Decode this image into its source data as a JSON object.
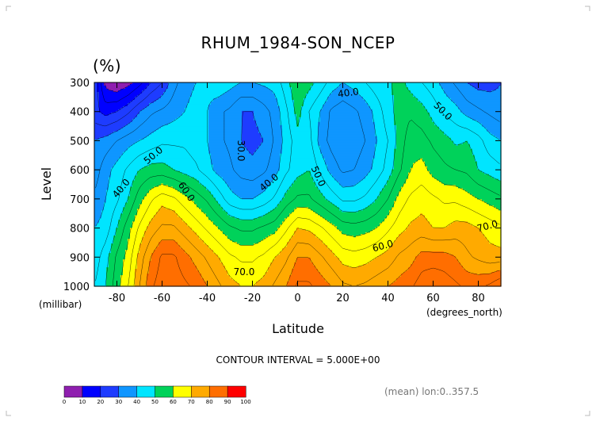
{
  "chart_data": {
    "type": "heatmap",
    "title": "RHUM_1984-SON_NCEP",
    "units_label": "(%)",
    "xlabel": "Latitude",
    "ylabel": "Level",
    "x_unit_label": "(degrees_north)",
    "y_unit_label": "(millibar)",
    "xlim": [
      -90,
      90
    ],
    "ylim": [
      1000,
      300
    ],
    "x_ticks": [
      -80,
      -60,
      -40,
      -20,
      0,
      20,
      40,
      60,
      80
    ],
    "y_ticks": [
      300,
      400,
      500,
      600,
      700,
      800,
      900,
      1000
    ],
    "x": [
      -90,
      -85,
      -80,
      -75,
      -70,
      -65,
      -60,
      -55,
      -50,
      -45,
      -40,
      -35,
      -30,
      -25,
      -20,
      -15,
      -10,
      -5,
      0,
      5,
      10,
      15,
      20,
      25,
      30,
      35,
      40,
      45,
      50,
      55,
      60,
      65,
      70,
      75,
      80,
      85,
      90
    ],
    "y": [
      300,
      400,
      500,
      600,
      700,
      800,
      900,
      1000
    ],
    "z": [
      [
        25,
        8,
        5,
        8,
        13,
        20,
        25,
        33,
        38,
        40,
        42,
        44,
        42,
        40,
        40,
        41,
        42,
        48,
        55,
        52,
        48,
        43,
        40,
        42,
        45,
        48,
        49,
        52,
        48,
        45,
        42,
        38,
        34,
        30,
        28,
        28,
        30
      ],
      [
        22,
        18,
        20,
        24,
        30,
        34,
        36,
        38,
        40,
        42,
        40,
        36,
        34,
        30,
        30,
        33,
        37,
        44,
        52,
        45,
        40,
        34,
        32,
        34,
        37,
        42,
        48,
        52,
        54,
        52,
        48,
        44,
        42,
        38,
        36,
        34,
        32
      ],
      [
        30,
        32,
        35,
        38,
        40,
        42,
        44,
        44,
        44,
        42,
        40,
        36,
        34,
        30,
        28,
        30,
        36,
        42,
        48,
        47,
        38,
        33,
        30,
        32,
        35,
        40,
        45,
        52,
        58,
        57,
        54,
        52,
        49,
        50,
        47,
        42,
        40
      ],
      [
        32,
        38,
        42,
        46,
        50,
        52,
        52,
        50,
        48,
        46,
        42,
        38,
        36,
        33,
        32,
        34,
        38,
        44,
        48,
        50,
        44,
        38,
        34,
        35,
        38,
        42,
        47,
        54,
        60,
        62,
        58,
        56,
        55,
        54,
        50,
        48,
        46
      ],
      [
        36,
        40,
        44,
        50,
        58,
        64,
        68,
        66,
        62,
        58,
        54,
        48,
        42,
        40,
        40,
        42,
        46,
        52,
        56,
        56,
        52,
        48,
        44,
        44,
        46,
        50,
        55,
        62,
        66,
        68,
        66,
        64,
        64,
        62,
        60,
        58,
        56
      ],
      [
        40,
        42,
        50,
        58,
        66,
        72,
        76,
        76,
        72,
        68,
        64,
        60,
        56,
        54,
        54,
        56,
        58,
        64,
        70,
        69,
        66,
        62,
        58,
        57,
        58,
        60,
        64,
        68,
        71,
        72,
        70,
        70,
        72,
        72,
        70,
        68,
        66
      ],
      [
        42,
        48,
        56,
        62,
        72,
        80,
        86,
        86,
        82,
        78,
        74,
        70,
        66,
        64,
        64,
        66,
        70,
        74,
        80,
        80,
        76,
        72,
        68,
        67,
        68,
        70,
        72,
        76,
        78,
        82,
        82,
        82,
        80,
        76,
        74,
        72,
        72
      ],
      [
        45,
        50,
        58,
        65,
        75,
        84,
        88,
        88,
        86,
        84,
        80,
        76,
        72,
        70,
        70,
        72,
        76,
        80,
        86,
        86,
        83,
        80,
        76,
        75,
        76,
        78,
        80,
        82,
        84,
        88,
        90,
        88,
        86,
        84,
        84,
        86,
        90
      ]
    ],
    "contour_labels": [
      "30.0",
      "40.0",
      "40.0",
      "40.0",
      "50.0",
      "50.0",
      "50.0",
      "60.0",
      "60.0",
      "70.0",
      "70.0"
    ],
    "levels": [
      0,
      10,
      20,
      30,
      40,
      50,
      60,
      70,
      80,
      90,
      100
    ],
    "colors": [
      "#8f1faf",
      "#0000ff",
      "#1e3cff",
      "#0f96ff",
      "#00e5ff",
      "#00d25a",
      "#ffff00",
      "#ffaa00",
      "#ff6e00",
      "#ff0000"
    ],
    "grid": false
  },
  "footer": {
    "interval": "CONTOUR INTERVAL = 5.000E+00",
    "mean_note": "(mean) lon:0..357.5"
  },
  "colorbar": {
    "ticks": [
      "0",
      "10",
      "20",
      "30",
      "40",
      "50",
      "60",
      "70",
      "80",
      "90",
      "100"
    ]
  }
}
